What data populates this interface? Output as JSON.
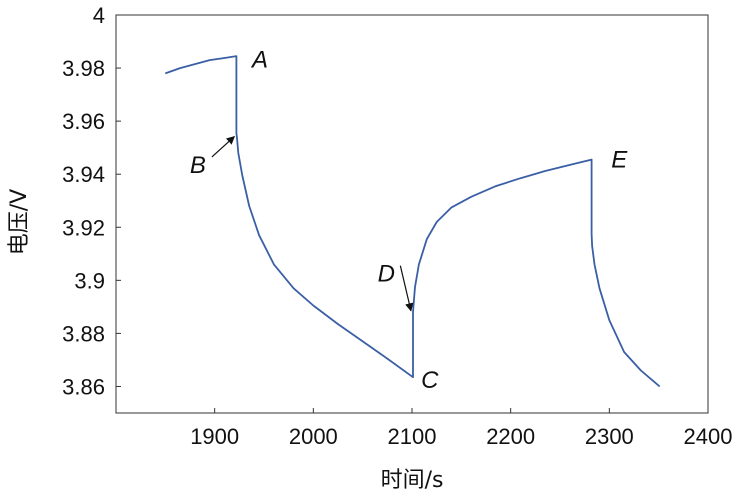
{
  "chart_data": {
    "type": "line",
    "xlabel": "时间/s",
    "ylabel": "电压/V",
    "xlim": [
      1800,
      2400
    ],
    "ylim": [
      3.85,
      4.0
    ],
    "x_ticks": [
      "1900",
      "2000",
      "2100",
      "2200",
      "2300",
      "2400"
    ],
    "y_ticks": [
      "3.86",
      "3.88",
      "3.9",
      "3.92",
      "3.94",
      "3.96",
      "3.98",
      "4"
    ],
    "grid": false,
    "line_color": "#3a5fa5",
    "series": [
      {
        "x": [
          1850,
          1865,
          1880,
          1895,
          1910,
          1922,
          1922,
          1922.5,
          1924,
          1928,
          1935,
          1945,
          1960,
          1980,
          2000,
          2025,
          2050,
          2075,
          2101,
          2101,
          2101.5,
          2103,
          2107,
          2115,
          2125,
          2140,
          2160,
          2185,
          2210,
          2235,
          2260,
          2282,
          2282,
          2282.5,
          2285,
          2290,
          2300,
          2315,
          2332,
          2351
        ],
        "y": [
          3.978,
          3.98,
          3.9815,
          3.983,
          3.9838,
          3.9845,
          3.9555,
          3.954,
          3.948,
          3.9395,
          3.928,
          3.917,
          3.906,
          3.897,
          3.8905,
          3.8835,
          3.877,
          3.8705,
          3.8635,
          3.888,
          3.8905,
          3.8975,
          3.906,
          3.9155,
          3.922,
          3.9275,
          3.9315,
          3.9355,
          3.9385,
          3.9412,
          3.9435,
          3.9455,
          3.9175,
          3.913,
          3.906,
          3.897,
          3.885,
          3.873,
          3.866,
          3.86
        ]
      }
    ],
    "annotations": [
      {
        "text": "A",
        "x": 1946,
        "y": 3.9833
      },
      {
        "text": "B",
        "x": 1883,
        "y": 3.9435,
        "arrow_to": [
          1922,
          3.9542
        ]
      },
      {
        "text": "C",
        "x": 2118,
        "y": 3.8625
      },
      {
        "text": "D",
        "x": 2074,
        "y": 3.9025,
        "arrow_to": [
          2101,
          3.8885
        ]
      },
      {
        "text": "E",
        "x": 2310,
        "y": 3.9455
      }
    ]
  }
}
